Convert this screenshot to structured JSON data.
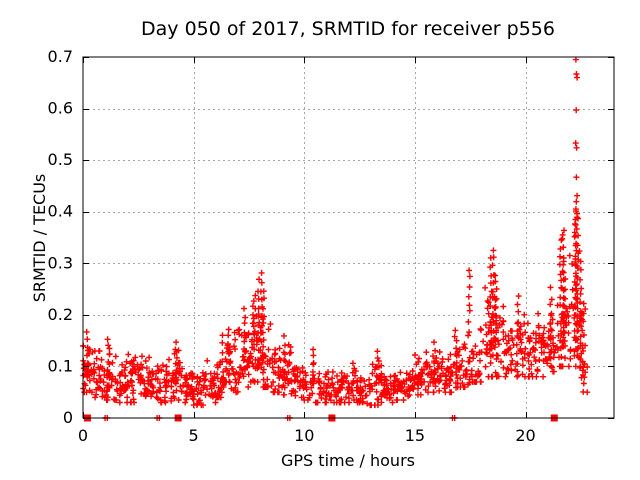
{
  "window": {
    "background": "#ffffff"
  },
  "chart_data": {
    "type": "scatter",
    "title": "Day 050 of 2017, SRMTID for receiver p556",
    "xlabel": "GPS time / hours",
    "ylabel": "SRMTID / TECUs",
    "xlim": [
      0,
      24
    ],
    "ylim": [
      0,
      0.7
    ],
    "xticks": [
      0,
      5,
      10,
      15,
      20
    ],
    "xtick_labels": [
      "0",
      "5",
      "10",
      "15",
      "20"
    ],
    "yticks": [
      0,
      0.1,
      0.2,
      0.3,
      0.4,
      0.5,
      0.6,
      0.7
    ],
    "ytick_labels": [
      "0",
      "0.1",
      "0.2",
      "0.3",
      "0.4",
      "0.5",
      "0.6",
      "0.7"
    ],
    "grid": true,
    "legend": "none",
    "marker": "plus",
    "marker_color": "#ff0000",
    "grid_color": "#a6a6a6",
    "text_color": "#000000",
    "seed": 20170550,
    "density_bins": [
      [
        0.0,
        0.5,
        38,
        0.05,
        0.1,
        0.165
      ],
      [
        0.5,
        1.0,
        30,
        0.04,
        0.085,
        0.13
      ],
      [
        1.0,
        1.5,
        30,
        0.035,
        0.08,
        0.155
      ],
      [
        1.5,
        2.0,
        30,
        0.03,
        0.065,
        0.11
      ],
      [
        2.0,
        2.5,
        30,
        0.03,
        0.07,
        0.13
      ],
      [
        2.5,
        3.0,
        30,
        0.035,
        0.075,
        0.12
      ],
      [
        3.0,
        3.5,
        28,
        0.03,
        0.06,
        0.11
      ],
      [
        3.5,
        4.0,
        28,
        0.03,
        0.065,
        0.12
      ],
      [
        4.0,
        4.5,
        30,
        0.035,
        0.075,
        0.15
      ],
      [
        4.5,
        5.0,
        28,
        0.03,
        0.06,
        0.1
      ],
      [
        5.0,
        5.5,
        28,
        0.025,
        0.055,
        0.1
      ],
      [
        5.5,
        6.0,
        28,
        0.03,
        0.065,
        0.13
      ],
      [
        6.0,
        6.5,
        28,
        0.04,
        0.08,
        0.16
      ],
      [
        6.5,
        7.0,
        30,
        0.05,
        0.1,
        0.19
      ],
      [
        7.0,
        7.5,
        30,
        0.06,
        0.11,
        0.21
      ],
      [
        7.5,
        8.0,
        32,
        0.07,
        0.13,
        0.25
      ],
      [
        8.0,
        8.5,
        30,
        0.06,
        0.12,
        0.26
      ],
      [
        8.5,
        9.0,
        28,
        0.05,
        0.09,
        0.16
      ],
      [
        9.0,
        9.5,
        28,
        0.045,
        0.085,
        0.155
      ],
      [
        9.5,
        10.0,
        26,
        0.04,
        0.07,
        0.12
      ],
      [
        10.0,
        10.5,
        20,
        0.035,
        0.065,
        0.13
      ],
      [
        10.5,
        11.0,
        24,
        0.03,
        0.055,
        0.1
      ],
      [
        11.0,
        11.5,
        24,
        0.03,
        0.055,
        0.1
      ],
      [
        11.5,
        12.0,
        28,
        0.03,
        0.055,
        0.09
      ],
      [
        12.0,
        12.5,
        28,
        0.03,
        0.06,
        0.12
      ],
      [
        12.5,
        13.0,
        28,
        0.025,
        0.05,
        0.085
      ],
      [
        13.0,
        13.5,
        28,
        0.025,
        0.055,
        0.13
      ],
      [
        13.5,
        14.0,
        28,
        0.03,
        0.055,
        0.095
      ],
      [
        14.0,
        14.5,
        28,
        0.035,
        0.06,
        0.1
      ],
      [
        14.5,
        15.0,
        28,
        0.04,
        0.07,
        0.11
      ],
      [
        15.0,
        15.5,
        28,
        0.045,
        0.08,
        0.13
      ],
      [
        15.5,
        16.0,
        28,
        0.05,
        0.085,
        0.145
      ],
      [
        16.0,
        16.5,
        28,
        0.05,
        0.085,
        0.13
      ],
      [
        16.5,
        17.0,
        28,
        0.05,
        0.09,
        0.17
      ],
      [
        17.0,
        17.5,
        26,
        0.06,
        0.1,
        0.19
      ],
      [
        17.5,
        18.0,
        26,
        0.07,
        0.12,
        0.23
      ],
      [
        18.0,
        18.5,
        28,
        0.08,
        0.15,
        0.3
      ],
      [
        18.5,
        19.0,
        28,
        0.08,
        0.15,
        0.28
      ],
      [
        19.0,
        19.5,
        26,
        0.08,
        0.13,
        0.2
      ],
      [
        19.5,
        20.0,
        26,
        0.08,
        0.13,
        0.21
      ],
      [
        20.0,
        20.5,
        28,
        0.08,
        0.13,
        0.19
      ],
      [
        20.5,
        21.0,
        28,
        0.08,
        0.14,
        0.21
      ],
      [
        21.0,
        21.5,
        26,
        0.09,
        0.15,
        0.24
      ],
      [
        21.5,
        22.0,
        26,
        0.1,
        0.18,
        0.33
      ],
      [
        22.0,
        22.5,
        26,
        0.1,
        0.2,
        0.38
      ],
      [
        22.5,
        22.8,
        12,
        0.05,
        0.12,
        0.25
      ]
    ],
    "spike_columns": [
      [
        0.2,
        0.09,
        0.165
      ],
      [
        1.15,
        0.06,
        0.155
      ],
      [
        4.2,
        0.07,
        0.15
      ],
      [
        6.3,
        0.06,
        0.16
      ],
      [
        6.55,
        0.08,
        0.175
      ],
      [
        7.3,
        0.08,
        0.215
      ],
      [
        7.75,
        0.1,
        0.24
      ],
      [
        7.95,
        0.1,
        0.265
      ],
      [
        8.05,
        0.1,
        0.28
      ],
      [
        8.15,
        0.09,
        0.245
      ],
      [
        9.1,
        0.06,
        0.16
      ],
      [
        10.4,
        0.05,
        0.135
      ],
      [
        13.3,
        0.05,
        0.13
      ],
      [
        15.9,
        0.06,
        0.145
      ],
      [
        16.85,
        0.07,
        0.17
      ],
      [
        17.45,
        0.17,
        0.29
      ],
      [
        18.45,
        0.12,
        0.31
      ],
      [
        18.55,
        0.14,
        0.324
      ],
      [
        18.65,
        0.12,
        0.28
      ],
      [
        19.65,
        0.09,
        0.235
      ],
      [
        21.15,
        0.1,
        0.25
      ],
      [
        21.6,
        0.12,
        0.33
      ],
      [
        21.7,
        0.14,
        0.36
      ],
      [
        21.75,
        0.12,
        0.3
      ],
      [
        22.25,
        0.12,
        0.38
      ],
      [
        22.3,
        0.15,
        0.42
      ],
      [
        22.35,
        0.12,
        0.4
      ],
      [
        22.5,
        0.08,
        0.3
      ],
      [
        22.6,
        0.05,
        0.22
      ]
    ],
    "outlier_points": [
      [
        22.28,
        0.695
      ],
      [
        22.3,
        0.667
      ],
      [
        22.33,
        0.66
      ],
      [
        22.29,
        0.597
      ],
      [
        22.27,
        0.533
      ],
      [
        22.31,
        0.524
      ],
      [
        22.3,
        0.467
      ],
      [
        22.33,
        0.431
      ],
      [
        22.28,
        0.405
      ],
      [
        22.26,
        0.385
      ],
      [
        21.62,
        0.345
      ],
      [
        21.68,
        0.355
      ]
    ],
    "zero_line_squares": [
      0.2,
      4.3,
      11.25,
      21.3
    ],
    "zero_line_plus_pairs": [
      [
        1.0,
        1.1
      ],
      [
        3.35,
        3.45
      ],
      [
        9.25,
        9.35
      ],
      [
        16.7,
        16.8
      ]
    ]
  }
}
